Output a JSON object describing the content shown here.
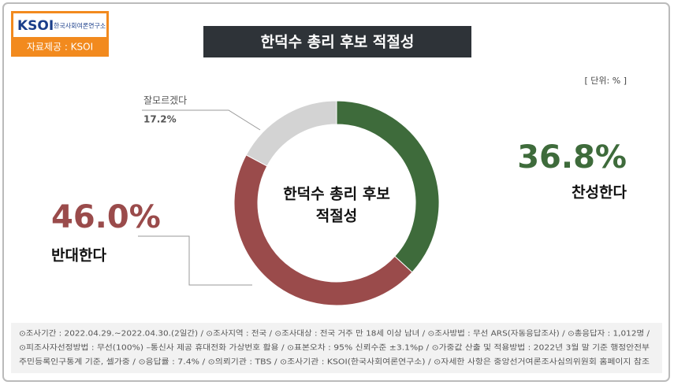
{
  "logo": {
    "brand": "KSOI",
    "org": "한국사회여론연구소",
    "source": "자료제공 : KSOI"
  },
  "chart_data": {
    "type": "donut",
    "title": "한덕수 총리 후보 적절성",
    "center_label": [
      "한덕수 총리 후보",
      "적절성"
    ],
    "unit": "[ 단위: % ]",
    "categories": [
      "찬성한다",
      "반대한다",
      "잘모르겠다"
    ],
    "values": [
      36.8,
      46.0,
      17.2
    ],
    "value_labels": [
      "36.8%",
      "46.0%",
      "17.2%"
    ],
    "colors": [
      "#3e6b3b",
      "#9a4b4b",
      "#d3d3d3"
    ]
  },
  "footnote": [
    "⊙조사기간 : 2022.04.29.~2022.04.30.(2일간) / ⊙조사지역 : 전국 / ⊙조사대상 : 전국 거주 만 18세 이상 남녀 / ⊙조사방법 : 무선 ARS(자동응답조사) / ⊙총응답자 : 1,012명 /",
    "⊙피조사자선정방법 : 무선(100%) –통신사 제공 휴대전화 가상번호 활용 / ⊙표본오차 : 95% 신뢰수준 ±3.1%p / ⊙가중값 산출 및 적용방법 : 2022년 3월 말 기준 행정안전부",
    "주민등록인구통계 기준, 셀가중 / ⊙응답률 : 7.4% / ⊙의뢰기관 : TBS / ⊙조사기관 : KSOI(한국사회여론연구소) / ⊙자세한 사항은 중앙선거여론조사심의위원회 홈페이지 참조"
  ]
}
